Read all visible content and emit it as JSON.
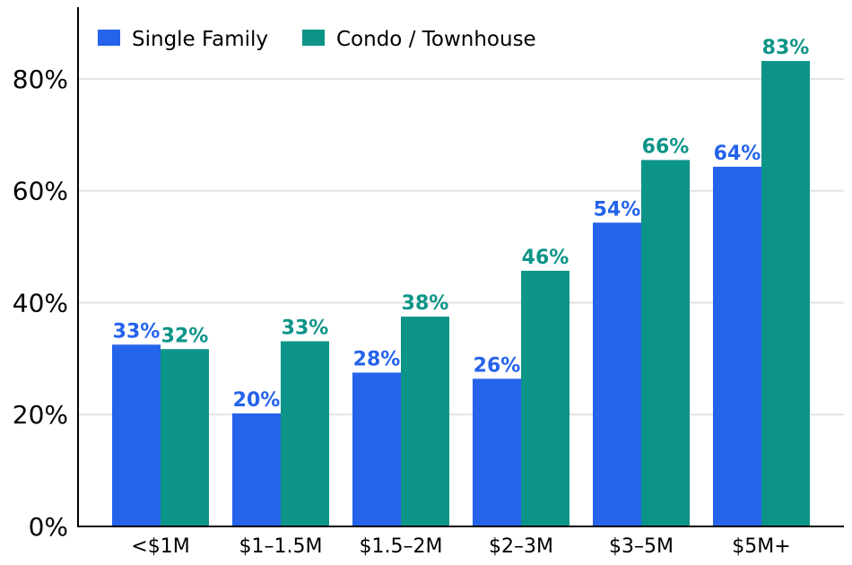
{
  "chart_data": {
    "type": "bar",
    "categories": [
      "<$1M",
      "$1–1.5M",
      "$1.5–2M",
      "$2–3M",
      "$3–5M",
      "$5M+"
    ],
    "series": [
      {
        "name": "Single Family",
        "color": "#2563eb",
        "values": [
          32.5,
          20.2,
          27.5,
          26.4,
          54.3,
          64.3
        ],
        "labels": [
          "33%",
          "20%",
          "28%",
          "26%",
          "54%",
          "64%"
        ]
      },
      {
        "name": "Condo / Townhouse",
        "color": "#0d9488",
        "values": [
          31.7,
          33.1,
          37.5,
          45.7,
          65.5,
          83.2
        ],
        "labels": [
          "32%",
          "33%",
          "38%",
          "46%",
          "66%",
          "83%"
        ]
      }
    ],
    "ylim": [
      0,
      92.5
    ],
    "yticks": [
      0,
      20,
      40,
      60,
      80
    ],
    "ytick_labels": [
      "0%",
      "20%",
      "40%",
      "60%",
      "80%"
    ],
    "grid": "horizontal",
    "legend_position": "top-left"
  }
}
